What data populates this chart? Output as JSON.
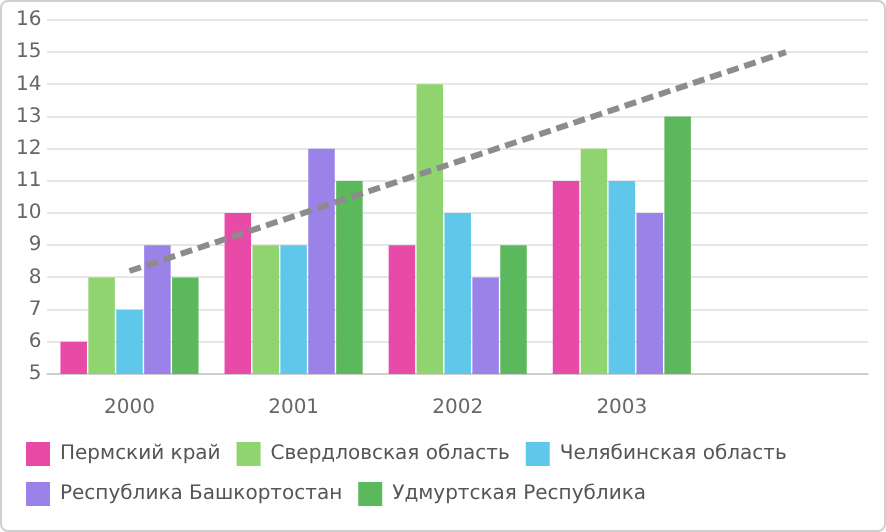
{
  "chart_data": {
    "type": "bar",
    "categories": [
      "2000",
      "2001",
      "2002",
      "2003",
      null
    ],
    "series": [
      {
        "name": "Пермский край",
        "color": "#e84aa8",
        "values": [
          6,
          10,
          9,
          11,
          null
        ]
      },
      {
        "name": "Свердловская область",
        "color": "#8fd46e",
        "values": [
          8,
          9,
          14,
          12,
          null
        ]
      },
      {
        "name": "Челябинская область",
        "color": "#5fc8ea",
        "values": [
          7,
          9,
          10,
          11,
          null
        ]
      },
      {
        "name": "Республика Башкортостан",
        "color": "#9a82e8",
        "values": [
          9,
          12,
          8,
          10,
          null
        ]
      },
      {
        "name": "Удмуртская Республика",
        "color": "#5cb85c",
        "values": [
          8,
          11,
          9,
          13,
          null
        ]
      },
      {
        "type": "line",
        "color": "#8c8c8c",
        "line_style": "dashed",
        "marker": "none",
        "values": [
          8.2,
          9.9,
          11.6,
          13.3,
          15
        ]
      }
    ],
    "ylim": [
      5,
      16
    ],
    "yticks": [
      5,
      6,
      7,
      8,
      9,
      10,
      11,
      12,
      13,
      14,
      15,
      16
    ],
    "grid": "y",
    "legend": "bottom"
  }
}
